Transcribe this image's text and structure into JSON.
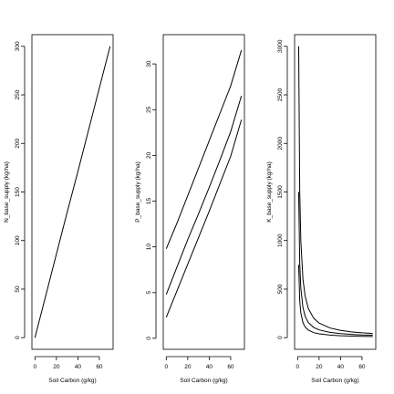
{
  "chart_data": [
    {
      "type": "line",
      "title": "",
      "xlabel": "Soil Carbon (g/kg)",
      "ylabel": "N_base_supply (kg/ha)",
      "xlim": [
        -2.8,
        72.8
      ],
      "ylim": [
        -12,
        312
      ],
      "xticks": [
        0,
        20,
        40,
        60
      ],
      "yticks": [
        0,
        50,
        100,
        150,
        200,
        250,
        300
      ],
      "series": [
        {
          "x": [
            0,
            10,
            20,
            30,
            40,
            50,
            60,
            70
          ],
          "y": [
            0,
            43,
            86,
            129,
            171,
            214,
            257,
            300
          ]
        }
      ],
      "grid": false,
      "legend": "none"
    },
    {
      "type": "line",
      "title": "",
      "xlabel": "Soil Carbon (g/kg)",
      "ylabel": "P_base_supply (kg/ha)",
      "xlim": [
        -2.8,
        72.8
      ],
      "ylim": [
        -1.2,
        33.2
      ],
      "xticks": [
        0,
        20,
        40,
        60
      ],
      "yticks": [
        0,
        5,
        10,
        15,
        20,
        25,
        30
      ],
      "series": [
        {
          "x": [
            0,
            10,
            20,
            30,
            40,
            50,
            60,
            70
          ],
          "y": [
            9.8,
            12.6,
            15.6,
            18.6,
            21.6,
            24.6,
            27.6,
            31.5
          ]
        },
        {
          "x": [
            0,
            10,
            20,
            30,
            40,
            50,
            60,
            70
          ],
          "y": [
            4.8,
            7.8,
            10.8,
            13.6,
            16.5,
            19.5,
            22.6,
            26.5
          ]
        },
        {
          "x": [
            0,
            10,
            20,
            30,
            40,
            50,
            60,
            70
          ],
          "y": [
            2.3,
            5.2,
            8.1,
            11.0,
            13.9,
            16.9,
            19.9,
            23.9
          ]
        }
      ],
      "grid": false,
      "legend": "none"
    },
    {
      "type": "line",
      "title": "",
      "xlabel": "Soil Carbon (g/kg)",
      "ylabel": "K_base_supply (kg/ha)",
      "xlim": [
        -2.8,
        72.8
      ],
      "ylim": [
        -120,
        3120
      ],
      "xticks": [
        0,
        20,
        40,
        60
      ],
      "yticks": [
        0,
        500,
        1000,
        1500,
        2000,
        2500,
        3000
      ],
      "series": [
        {
          "x": [
            1,
            2,
            3,
            5,
            7,
            10,
            15,
            20,
            30,
            40,
            50,
            60,
            70
          ],
          "y": [
            3000,
            1500,
            1000,
            600,
            430,
            300,
            200,
            150,
            100,
            75,
            60,
            50,
            43
          ]
        },
        {
          "x": [
            1,
            2,
            3,
            5,
            7,
            10,
            15,
            20,
            30,
            40,
            50,
            60,
            70
          ],
          "y": [
            1500,
            760,
            510,
            310,
            220,
            155,
            105,
            80,
            55,
            42,
            34,
            28,
            25
          ]
        },
        {
          "x": [
            1,
            2,
            3,
            5,
            7,
            10,
            15,
            20,
            30,
            40,
            50,
            60,
            70
          ],
          "y": [
            750,
            380,
            255,
            155,
            110,
            78,
            52,
            40,
            27,
            20,
            16,
            14,
            12
          ]
        }
      ],
      "grid": false,
      "legend": "none"
    }
  ]
}
